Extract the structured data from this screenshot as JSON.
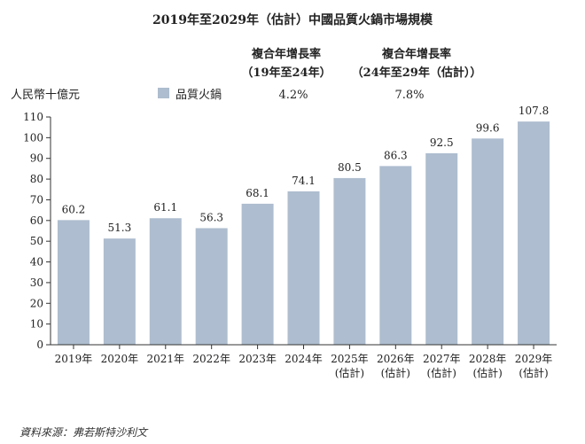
{
  "header": {
    "title": "2019年至2029年（估計）中國品質火鍋市場規模",
    "cagr1_line1": "複合年增長率",
    "cagr1_line2": "（19年至24年）",
    "cagr2_line1": "複合年增長率",
    "cagr2_line2": "（24年至29年（估計））",
    "unit": "人民幣十億元",
    "legend": "品質火鍋",
    "cagr1_value": "4.2%",
    "cagr2_value": "7.8%"
  },
  "source": "資料來源：弗若斯特沙利文",
  "colors": {
    "bar": "#aebdcf",
    "axis": "#333333"
  },
  "chart_data": {
    "type": "bar",
    "title": "2019年至2029年（估計）中國品質火鍋市場規模",
    "ylabel": "人民幣十億元",
    "xlabel": "",
    "ylim": [
      0,
      110
    ],
    "yticks": [
      0,
      10,
      20,
      30,
      40,
      50,
      60,
      70,
      80,
      90,
      100,
      110
    ],
    "grid": false,
    "legend": "top-left",
    "categories": [
      [
        "2019年"
      ],
      [
        "2020年"
      ],
      [
        "2021年"
      ],
      [
        "2022年"
      ],
      [
        "2023年"
      ],
      [
        "2024年"
      ],
      [
        "2025年",
        "(估計)"
      ],
      [
        "2026年",
        "(估計)"
      ],
      [
        "2027年",
        "(估計)"
      ],
      [
        "2028年",
        "(估計)"
      ],
      [
        "2029年",
        "(估計)"
      ]
    ],
    "series": [
      {
        "name": "品質火鍋",
        "values": [
          60.2,
          51.3,
          61.1,
          56.3,
          68.1,
          74.1,
          80.5,
          86.3,
          92.5,
          99.6,
          107.8
        ],
        "labels": [
          "60.2",
          "51.3",
          "61.1",
          "56.3",
          "68.1",
          "74.1",
          "80.5",
          "86.3",
          "92.5",
          "99.6",
          "107.8"
        ]
      }
    ]
  }
}
